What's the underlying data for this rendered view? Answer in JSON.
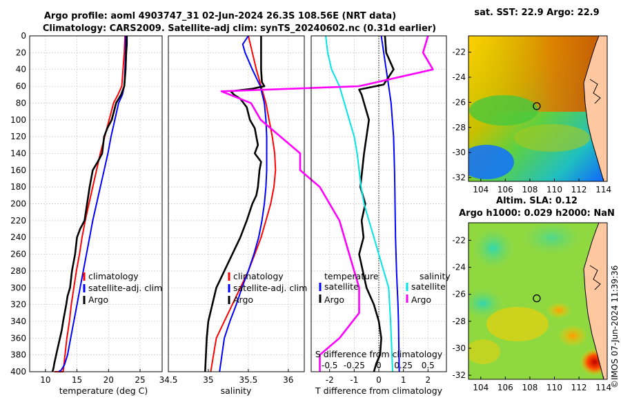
{
  "titles": {
    "line1": "Argo profile: aoml 4903747_31 02-Jun-2024 26.3S 108.56E (NRT data)",
    "line2": "Climatology: CARS2009. Satellite-adj clim: synTS_20240602.nc (0.31d earlier)",
    "sst_map": "sat. SST: 22.9 Argo: 22.9",
    "sla_line1": "Altim. SLA: 0.12",
    "sla_line2": "Argo h1000: 0.029 h2000: NaN",
    "credit": "©IMOS 07-Jun-2024 11:39:36"
  },
  "colors": {
    "climatology": "#ff0000",
    "satellite": "#0000ff",
    "argo": "#000000",
    "sat_salinity": "#00e5e5",
    "argo_salinity": "#ff00ff",
    "land": "#ffc8a0"
  },
  "chart_data": [
    {
      "type": "line",
      "name": "temperature",
      "xlabel": "temperature (deg C)",
      "ylabel": "",
      "xlim": [
        7.5,
        28.5
      ],
      "ylim": [
        400,
        0
      ],
      "xticks": [
        10,
        15,
        20,
        25
      ],
      "xticklabels": [
        "10",
        "15",
        "20",
        "25"
      ],
      "yticks": [
        0,
        20,
        40,
        60,
        80,
        100,
        120,
        140,
        160,
        180,
        200,
        220,
        240,
        260,
        280,
        300,
        320,
        340,
        360,
        380,
        400
      ],
      "grid": true,
      "legend": [
        "climatology",
        "satellite-adj. clim",
        "Argo"
      ],
      "series": [
        {
          "name": "climatology",
          "color": "#ff0000",
          "width": 2,
          "x": [
            22.6,
            22.5,
            22.3,
            22.1,
            21.5,
            20.8,
            20.1,
            19.4,
            18.7,
            18.1,
            17.5,
            16.9,
            16.3,
            15.8,
            15.4,
            14.9,
            14.5,
            14.1,
            13.8,
            13.4,
            13.1,
            12.8,
            12.5,
            12.2,
            11.9,
            11.6,
            11.4
          ],
          "y": [
            0,
            20,
            40,
            60,
            70,
            80,
            100,
            120,
            140,
            160,
            180,
            200,
            220,
            240,
            260,
            280,
            300,
            320,
            340,
            360,
            380,
            400,
            400,
            400,
            400,
            400,
            400
          ]
        },
        {
          "name": "satellite-adj. clim",
          "color": "#0000ff",
          "width": 2,
          "x": [
            22.7,
            22.7,
            22.6,
            22.5,
            22.2,
            21.6,
            21.0,
            20.4,
            19.9,
            19.3,
            18.7,
            18.1,
            17.5,
            17.0,
            16.5,
            16.0,
            15.5,
            15.0,
            14.5,
            14.0,
            13.5,
            13.0,
            12.5,
            12.1
          ],
          "y": [
            0,
            20,
            40,
            60,
            70,
            80,
            100,
            120,
            140,
            160,
            180,
            200,
            220,
            240,
            260,
            280,
            300,
            320,
            340,
            360,
            380,
            392,
            398,
            400
          ]
        },
        {
          "name": "Argo",
          "color": "#000000",
          "width": 2.6,
          "x": [
            22.9,
            22.9,
            22.8,
            22.7,
            22.5,
            22.0,
            21.2,
            20.5,
            19.8,
            19.3,
            19.0,
            18.3,
            17.5,
            17.0,
            16.6,
            16.2,
            15.5,
            15.0,
            14.7,
            14.2,
            13.9,
            13.5,
            13.3,
            12.8,
            12.6,
            12.3,
            12.0,
            11.7,
            11.4,
            11.3,
            11.2,
            11.1
          ],
          "y": [
            0,
            10,
            20,
            40,
            60,
            70,
            80,
            100,
            110,
            120,
            140,
            150,
            160,
            180,
            200,
            220,
            230,
            240,
            260,
            280,
            300,
            310,
            320,
            340,
            350,
            360,
            370,
            380,
            390,
            395,
            398,
            400
          ]
        }
      ]
    },
    {
      "type": "line",
      "name": "salinity",
      "xlabel": "salinity",
      "xlim": [
        34.5,
        36.2
      ],
      "ylim": [
        400,
        0
      ],
      "xticks": [
        34.5,
        35,
        35.5,
        36
      ],
      "xticklabels": [
        "34.5",
        "35",
        "35.5",
        "36"
      ],
      "grid": true,
      "legend": [
        "climatology",
        "satellite-adj. clim",
        "Argo"
      ],
      "series": [
        {
          "name": "climatology",
          "color": "#ff0000",
          "width": 2,
          "x": [
            35.5,
            35.55,
            35.6,
            35.66,
            35.72,
            35.76,
            35.8,
            35.83,
            35.84,
            35.82,
            35.78,
            35.72,
            35.66,
            35.58,
            35.5,
            35.4,
            35.3,
            35.2,
            35.1,
            35.03
          ],
          "y": [
            0,
            20,
            40,
            60,
            80,
            100,
            120,
            140,
            160,
            180,
            200,
            220,
            240,
            260,
            280,
            300,
            320,
            340,
            360,
            400
          ]
        },
        {
          "name": "satellite-adj. clim",
          "color": "#0000ff",
          "width": 2,
          "x": [
            35.5,
            35.43,
            35.46,
            35.55,
            35.65,
            35.7,
            35.72,
            35.73,
            35.73,
            35.72,
            35.7,
            35.67,
            35.63,
            35.57,
            35.5,
            35.42,
            35.35,
            35.27,
            35.2,
            35.14
          ],
          "y": [
            0,
            10,
            20,
            40,
            60,
            80,
            100,
            120,
            160,
            180,
            200,
            220,
            240,
            260,
            280,
            300,
            320,
            340,
            360,
            400
          ]
        },
        {
          "name": "Argo",
          "color": "#000000",
          "width": 2.6,
          "x": [
            35.66,
            35.66,
            35.66,
            35.67,
            35.7,
            35.55,
            35.28,
            35.32,
            35.4,
            35.48,
            35.52,
            35.58,
            35.6,
            35.62,
            35.58,
            35.66,
            35.64,
            35.62,
            35.6,
            35.55,
            35.48,
            35.4,
            35.3,
            35.2,
            35.1,
            35.05,
            35.0,
            34.98,
            34.96
          ],
          "y": [
            0,
            20,
            40,
            55,
            60,
            63,
            66,
            70,
            75,
            85,
            100,
            110,
            120,
            130,
            140,
            150,
            160,
            180,
            190,
            200,
            220,
            240,
            260,
            280,
            300,
            320,
            340,
            360,
            400
          ]
        }
      ]
    },
    {
      "type": "line",
      "name": "difference",
      "xlabel": "T difference from climatology",
      "xlabel_top": "S difference from climatology",
      "xlim": [
        -2.75,
        2.75
      ],
      "ylim": [
        400,
        0
      ],
      "xticks": [
        -2,
        -1,
        0,
        1,
        2
      ],
      "xticklabels": [
        "-2",
        "-1",
        "0",
        "1",
        "2"
      ],
      "sticks": [
        -0.5,
        -0.25,
        0,
        0.25,
        0.5
      ],
      "sticklabels": [
        "-0.5",
        "-0.25",
        "0",
        "0.25",
        "0.5"
      ],
      "grid": true,
      "legend_temperature": {
        "title": "temperature",
        "items": [
          "satellite",
          "Argo"
        ]
      },
      "legend_salinity": {
        "title": "salinity",
        "items": [
          "satellite",
          "Argo"
        ]
      },
      "series": [
        {
          "name": "T satellite",
          "color": "#0000ff",
          "width": 2,
          "x": [
            0.1,
            0.2,
            0.3,
            0.4,
            0.5,
            0.55,
            0.6,
            0.62,
            0.64,
            0.65,
            0.66,
            0.68,
            0.72,
            0.75,
            0.78,
            0.8,
            0.82,
            0.83
          ],
          "y": [
            0,
            20,
            40,
            60,
            80,
            100,
            120,
            140,
            160,
            180,
            200,
            240,
            280,
            300,
            320,
            340,
            380,
            400
          ]
        },
        {
          "name": "T Argo",
          "color": "#000000",
          "width": 2.6,
          "x": [
            0.25,
            0.3,
            0.6,
            0.2,
            -0.8,
            -0.7,
            -0.6,
            -0.4,
            -0.6,
            -0.75,
            -0.55,
            -0.7,
            -0.62,
            -0.8,
            -0.65,
            -0.5,
            -0.2,
            0.0,
            0.1,
            0.05,
            -0.1,
            -0.2
          ],
          "y": [
            0,
            20,
            40,
            58,
            64,
            70,
            80,
            100,
            140,
            180,
            200,
            220,
            240,
            260,
            280,
            300,
            320,
            340,
            360,
            380,
            390,
            400
          ]
        },
        {
          "name": "S satellite",
          "color": "#00e5e5",
          "width": 2,
          "x": [
            -0.54,
            -0.52,
            -0.48,
            -0.4,
            -0.35,
            -0.3,
            -0.25,
            -0.22,
            -0.2,
            -0.18,
            -0.15,
            -0.1,
            -0.05,
            0.0,
            0.05,
            0.1,
            0.12,
            0.14
          ],
          "y": [
            0,
            20,
            40,
            60,
            80,
            100,
            120,
            140,
            160,
            180,
            200,
            220,
            240,
            260,
            280,
            300,
            340,
            400
          ]
        },
        {
          "name": "S Argo",
          "color": "#ff00ff",
          "width": 2.6,
          "x": [
            0.5,
            0.45,
            0.55,
            -0.2,
            -1.6,
            -1.3,
            -1.2,
            -1.0,
            -0.8,
            -0.8,
            -0.6,
            -0.5,
            -0.4,
            -0.3,
            -0.2,
            -0.2,
            -0.4,
            -0.6,
            -0.6
          ],
          "y": [
            0,
            20,
            40,
            60,
            66,
            80,
            100,
            120,
            140,
            160,
            180,
            200,
            220,
            260,
            300,
            330,
            360,
            380,
            400
          ]
        }
      ]
    },
    {
      "type": "heatmap",
      "name": "sst_map",
      "xlim": [
        103,
        114.3
      ],
      "ylim": [
        -32.3,
        -20.7
      ],
      "xticks": [
        104,
        106,
        108,
        110,
        112,
        114
      ],
      "xticklabels": [
        "104",
        "106",
        "108",
        "110",
        "112",
        "114"
      ],
      "yticks": [
        -22,
        -24,
        -26,
        -28,
        -30,
        -32
      ],
      "yticklabels": [
        "-22",
        "-24",
        "-26",
        "-28",
        "-30",
        "-32"
      ],
      "marker": {
        "lon": 108.56,
        "lat": -26.3
      }
    },
    {
      "type": "heatmap",
      "name": "sla_map",
      "xlim": [
        103,
        114.3
      ],
      "ylim": [
        -32.3,
        -20.7
      ],
      "xticks": [
        104,
        106,
        108,
        110,
        112,
        114
      ],
      "xticklabels": [
        "104",
        "106",
        "108",
        "110",
        "112",
        "114"
      ],
      "yticks": [
        -22,
        -24,
        -26,
        -28,
        -30,
        -32
      ],
      "yticklabels": [
        "-22",
        "-24",
        "-26",
        "-28",
        "-30",
        "-32"
      ],
      "marker": {
        "lon": 108.56,
        "lat": -26.3
      }
    }
  ]
}
